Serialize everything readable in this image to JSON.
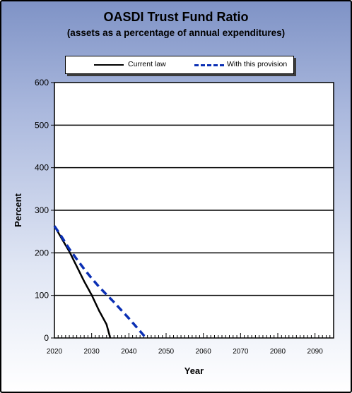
{
  "chart_data": {
    "type": "line",
    "title": "OASDI  Trust Fund Ratio",
    "subtitle": "(assets as a percentage of annual expenditures)",
    "xlabel": "Year",
    "ylabel": "Percent",
    "xlim": [
      2020,
      2095
    ],
    "ylim": [
      0,
      600
    ],
    "x_ticks": [
      2020,
      2030,
      2040,
      2050,
      2060,
      2070,
      2080,
      2090
    ],
    "y_ticks": [
      0,
      100,
      200,
      300,
      400,
      500,
      600
    ],
    "grid": "horizontal",
    "legend_position": "top",
    "series": [
      {
        "name": "Current law",
        "color": "#000000",
        "style": "solid",
        "x": [
          2020,
          2022,
          2024,
          2026,
          2028,
          2030,
          2032,
          2034,
          2035
        ],
        "y": [
          263,
          233,
          203,
          168,
          133,
          101,
          64,
          32,
          0
        ]
      },
      {
        "name": "With this provision",
        "color": "#0a2fb4",
        "style": "dashed",
        "x": [
          2020,
          2022,
          2024,
          2026,
          2028,
          2030,
          2032,
          2034,
          2036,
          2038,
          2040,
          2042,
          2044,
          2045
        ],
        "y": [
          263,
          237,
          209,
          185,
          162,
          140,
          120,
          102,
          84,
          65,
          46,
          26,
          6,
          0
        ]
      }
    ]
  }
}
